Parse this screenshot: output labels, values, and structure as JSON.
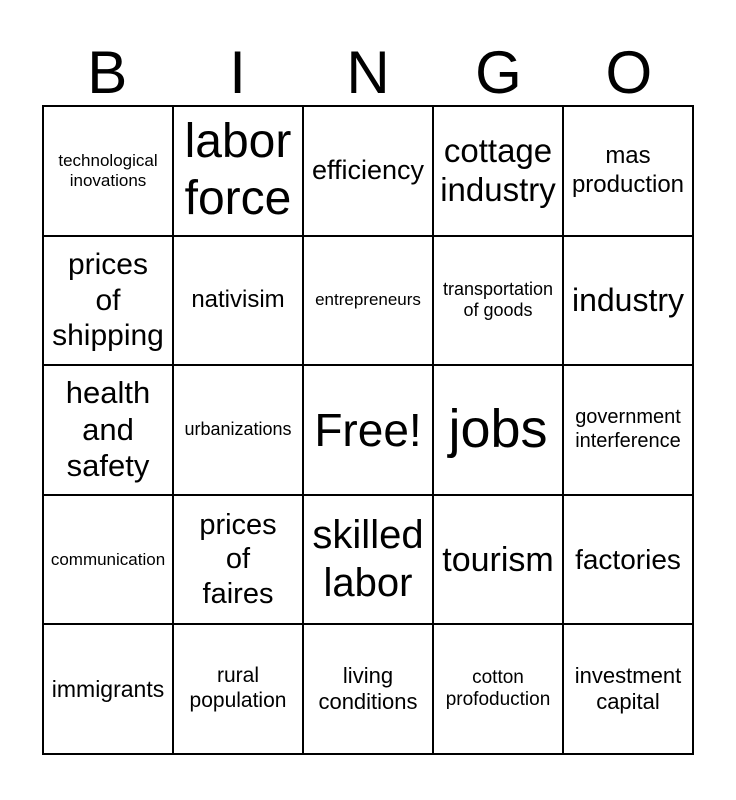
{
  "page": {
    "background_color": "#ffffff",
    "text_color": "#000000",
    "border_color": "#000000"
  },
  "title": {
    "letters": [
      "B",
      "I",
      "N",
      "G",
      "O"
    ]
  },
  "board": {
    "rows": 5,
    "cols": 5,
    "cells": [
      {
        "text": [
          "technological",
          "inovations"
        ]
      },
      {
        "text": [
          "labor",
          "force"
        ]
      },
      {
        "text": "efficiency"
      },
      {
        "text": [
          "cottage",
          "industry"
        ]
      },
      {
        "text": [
          "mas",
          "production"
        ]
      },
      {
        "text": [
          "prices",
          "of",
          "shipping"
        ]
      },
      {
        "text": "nativisim"
      },
      {
        "text": "entrepreneurs"
      },
      {
        "text": [
          "transportation",
          "of goods"
        ]
      },
      {
        "text": "industry"
      },
      {
        "text": [
          "health",
          "and",
          "safety"
        ]
      },
      {
        "text": "urbanizations"
      },
      {
        "text": "Free!"
      },
      {
        "text": "jobs"
      },
      {
        "text": [
          "government",
          "interference"
        ]
      },
      {
        "text": "communication"
      },
      {
        "text": [
          "prices",
          "of",
          "faires"
        ]
      },
      {
        "text": [
          "skilled",
          "labor"
        ]
      },
      {
        "text": "tourism"
      },
      {
        "text": "factories"
      },
      {
        "text": "immigrants"
      },
      {
        "text": [
          "rural",
          "population"
        ]
      },
      {
        "text": [
          "living",
          "conditions"
        ]
      },
      {
        "text": [
          "cotton",
          "profoduction"
        ]
      },
      {
        "text": [
          "investment",
          "capital"
        ]
      }
    ]
  }
}
